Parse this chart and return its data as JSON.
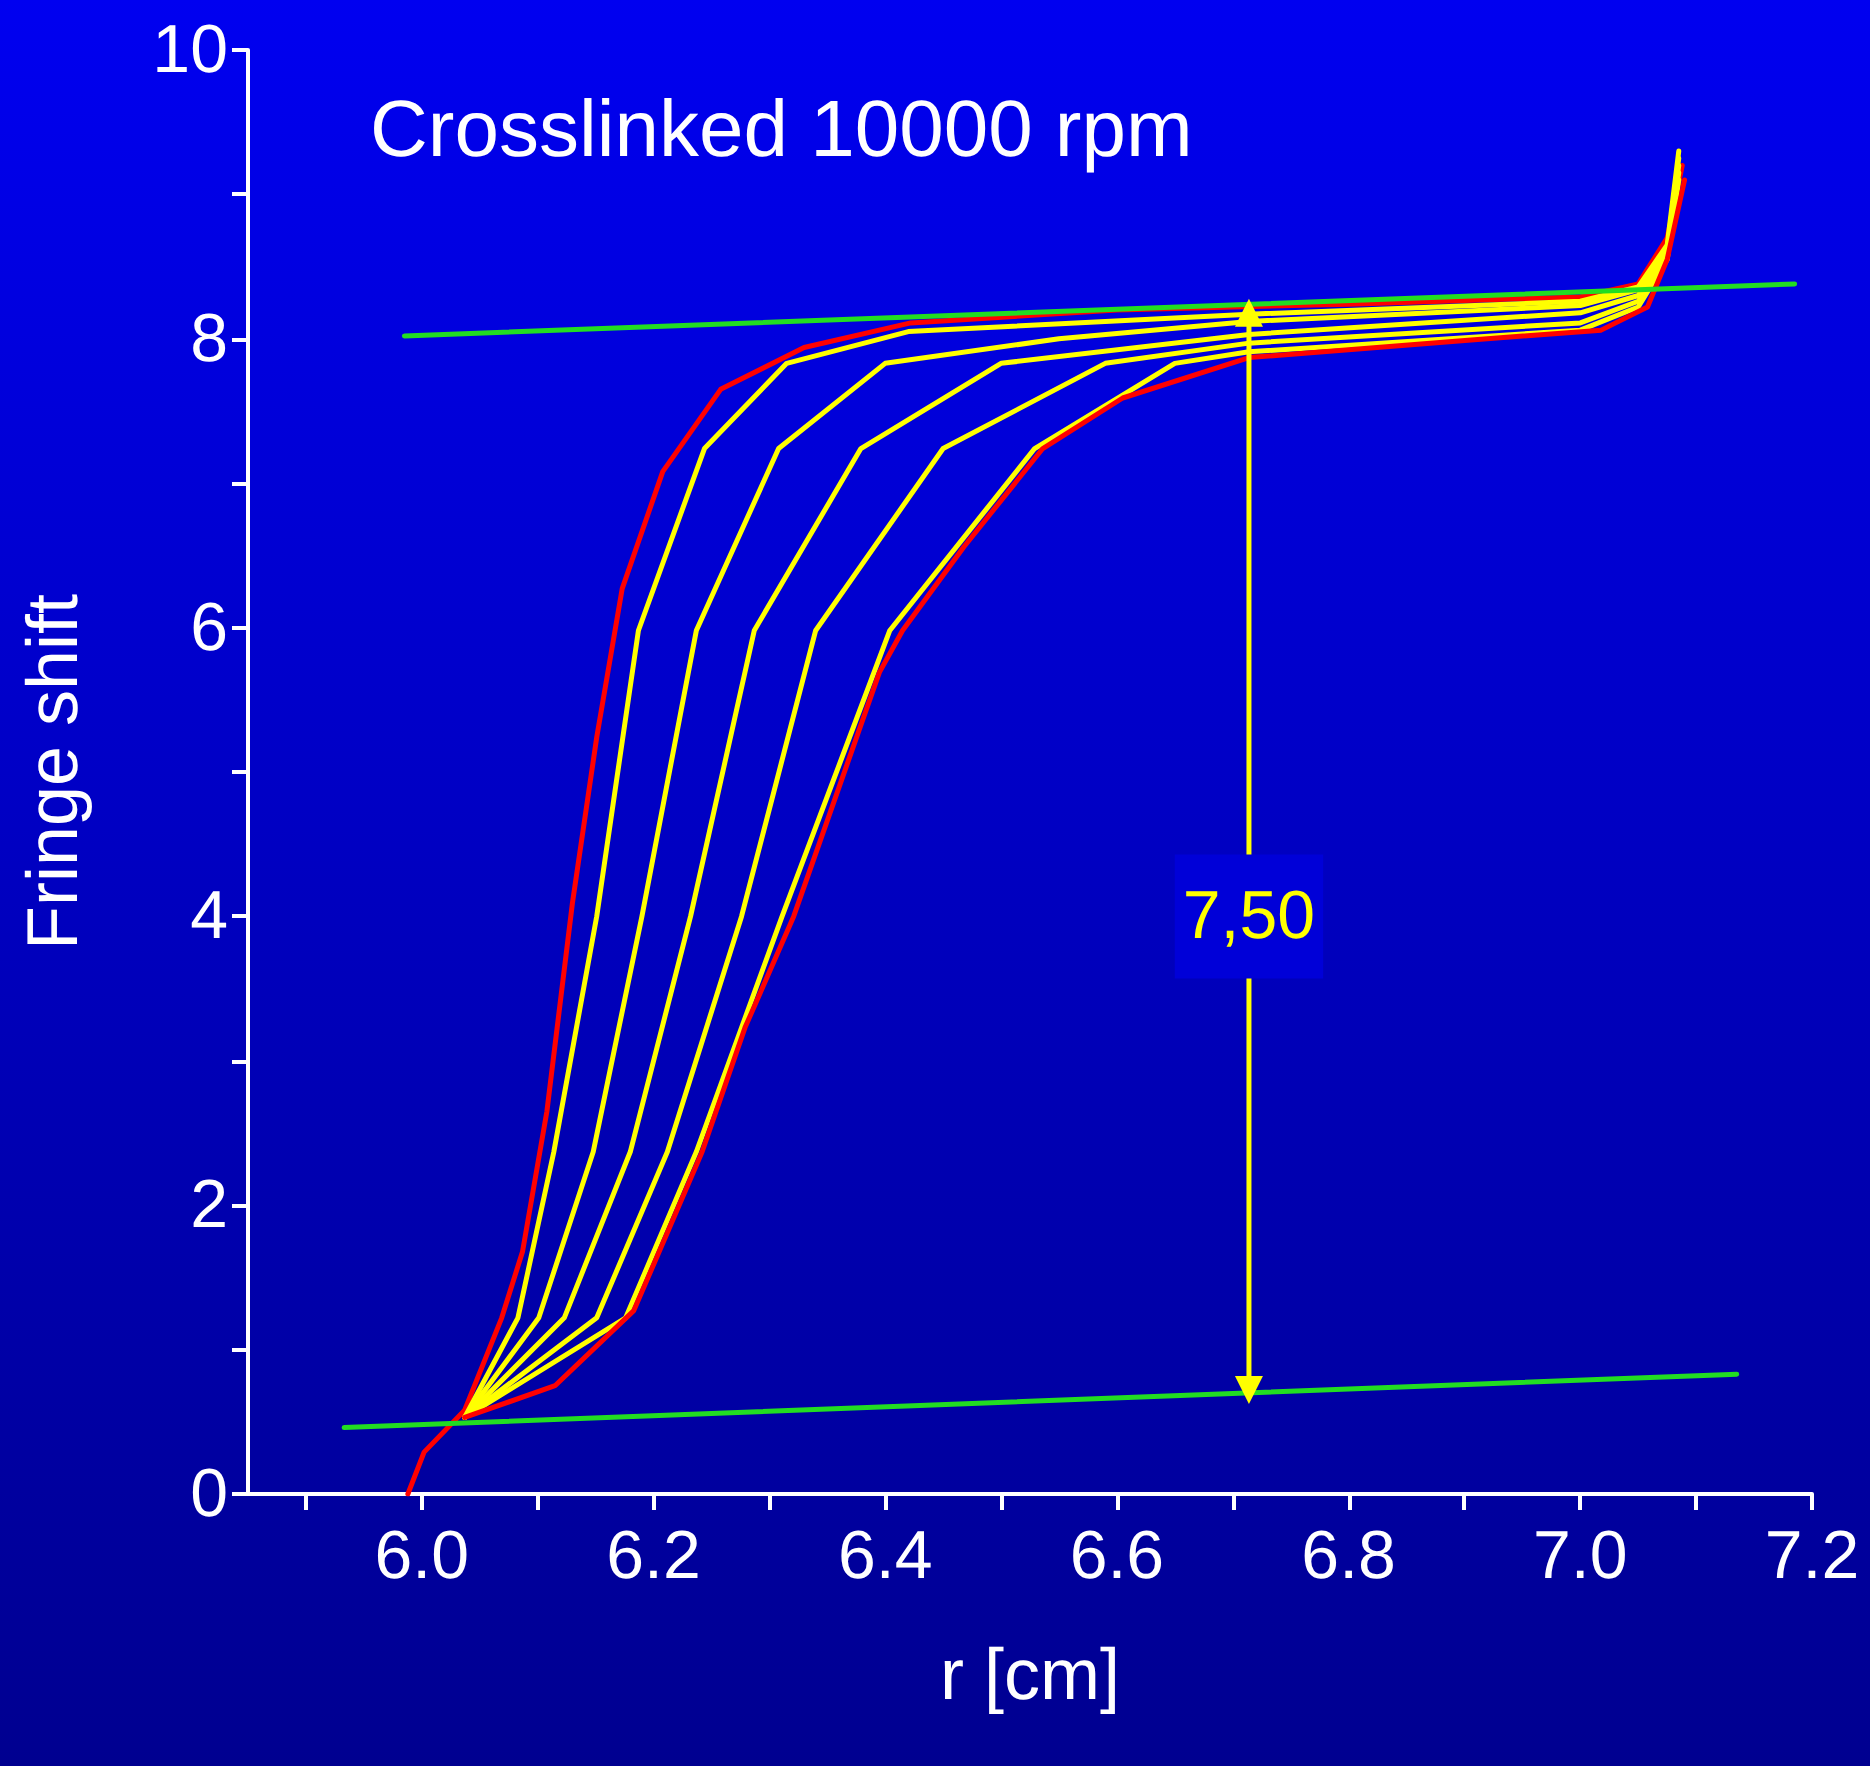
{
  "chart_data": {
    "type": "line",
    "title": "Crosslinked 10000 rpm",
    "xlabel": "r [cm]",
    "ylabel": "Fringe shift",
    "xlim": [
      5.85,
      7.2
    ],
    "xticks": [
      {
        "value": 5.9,
        "label": null
      },
      {
        "value": 6,
        "label": "6.0"
      },
      {
        "value": 6.1,
        "label": null
      },
      {
        "value": 6.2,
        "label": "6.2"
      },
      {
        "value": 6.3,
        "label": null
      },
      {
        "value": 6.4,
        "label": "6.4"
      },
      {
        "value": 6.5,
        "label": null
      },
      {
        "value": 6.6,
        "label": "6.6"
      },
      {
        "value": 6.7,
        "label": null
      },
      {
        "value": 6.8,
        "label": "6.8"
      },
      {
        "value": 6.9,
        "label": null
      },
      {
        "value": 7,
        "label": "7.0"
      },
      {
        "value": 7.1,
        "label": null
      },
      {
        "value": 7.2,
        "label": "7.2"
      }
    ],
    "ylim": [
      0,
      10
    ],
    "yticks": [
      0,
      {
        "value": 1,
        "label": null
      },
      2,
      {
        "value": 3,
        "label": null
      },
      4,
      {
        "value": 5,
        "label": null
      },
      6,
      {
        "value": 7,
        "label": null
      },
      8,
      {
        "value": 9,
        "label": null
      },
      10
    ],
    "marker": "none",
    "line_style": "solid",
    "annotations": [
      {
        "text": "7,50",
        "x": 6.714,
        "y": 4.0
      }
    ],
    "series": [
      {
        "color": "#ff0000",
        "x": [
          5.988,
          6.002,
          6.037,
          6.069,
          6.087,
          6.108,
          6.13,
          6.151,
          6.173,
          6.208,
          6.258,
          6.33,
          6.422,
          6.6,
          6.8,
          7.0,
          7.05,
          7.075,
          7.088
        ],
        "values": [
          0,
          0.29,
          0.58,
          1.22,
          1.68,
          2.65,
          4.09,
          5.24,
          6.27,
          7.08,
          7.65,
          7.94,
          8.11,
          8.2,
          8.24,
          8.29,
          8.38,
          8.7,
          9.2
        ]
      },
      {
        "color": "#ffff00",
        "x": [
          6.037,
          6.083,
          6.114,
          6.151,
          6.187,
          6.244,
          6.315,
          6.42,
          6.714,
          7.0,
          7.05,
          7.075,
          7.085
        ],
        "values": [
          0.53,
          1.22,
          2.37,
          4.0,
          5.98,
          7.24,
          7.83,
          8.05,
          8.17,
          8.26,
          8.36,
          8.65,
          9.3
        ]
      },
      {
        "color": "#ffff00",
        "x": [
          6.037,
          6.101,
          6.148,
          6.19,
          6.237,
          6.308,
          6.4,
          6.55,
          6.714,
          7.0,
          7.05,
          7.075,
          7.085
        ],
        "values": [
          0.53,
          1.22,
          2.37,
          4.0,
          5.98,
          7.24,
          7.83,
          8.0,
          8.12,
          8.23,
          8.34,
          8.62,
          9.25
        ]
      },
      {
        "color": "#ffff00",
        "x": [
          6.037,
          6.123,
          6.18,
          6.232,
          6.287,
          6.379,
          6.5,
          6.714,
          7.0,
          7.05,
          7.075,
          7.085
        ],
        "values": [
          0.53,
          1.22,
          2.37,
          4.0,
          5.98,
          7.24,
          7.83,
          8.03,
          8.18,
          8.3,
          8.6,
          9.2
        ]
      },
      {
        "color": "#ffff00",
        "x": [
          6.037,
          6.151,
          6.212,
          6.276,
          6.34,
          6.45,
          6.59,
          6.714,
          7.0,
          7.05,
          7.075,
          7.085
        ],
        "values": [
          0.53,
          1.22,
          2.37,
          4.0,
          5.98,
          7.24,
          7.83,
          7.97,
          8.11,
          8.26,
          8.57,
          9.15
        ]
      },
      {
        "color": "#ffff00",
        "x": [
          6.037,
          6.176,
          6.237,
          6.311,
          6.404,
          6.529,
          6.65,
          6.714,
          7.0,
          7.05,
          7.075,
          7.085
        ],
        "values": [
          0.53,
          1.22,
          2.37,
          4.0,
          5.98,
          7.24,
          7.83,
          7.91,
          8.06,
          8.22,
          8.55,
          9.1
        ]
      },
      {
        "color": "#ff0000",
        "x": [
          6.037,
          6.115,
          6.183,
          6.242,
          6.279,
          6.321,
          6.395,
          6.415,
          6.468,
          6.536,
          6.605,
          6.714,
          6.903,
          7.018,
          7.058,
          7.075,
          7.09
        ],
        "values": [
          0.53,
          0.75,
          1.27,
          2.37,
          3.23,
          4.0,
          5.69,
          5.98,
          6.56,
          7.24,
          7.59,
          7.87,
          7.99,
          8.06,
          8.22,
          8.55,
          9.1
        ]
      },
      {
        "color": "#22dd22",
        "x": [
          5.985,
          7.185
        ],
        "values": [
          8.02,
          8.38
        ]
      },
      {
        "color": "#22dd22",
        "x": [
          5.933,
          7.135
        ],
        "values": [
          0.46,
          0.83
        ]
      },
      {
        "color": "#ffff00",
        "marker": "triangle",
        "x": [
          6.714,
          6.714
        ],
        "values": [
          0.72,
          8.18
        ]
      }
    ]
  }
}
